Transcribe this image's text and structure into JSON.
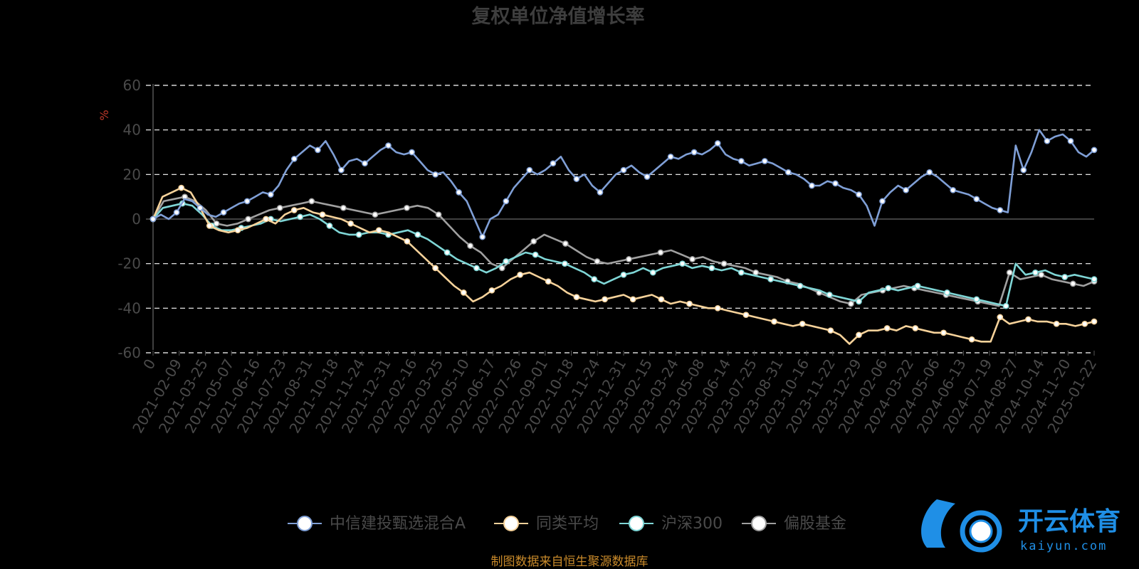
{
  "chart_data": {
    "type": "line",
    "title": "复权单位净值增长率",
    "ylabel": "%",
    "ylim": [
      -60,
      60
    ],
    "yticks": [
      "60",
      "40",
      "20",
      "0",
      "-20",
      "-40",
      "-60"
    ],
    "yticks_values": [
      60,
      40,
      20,
      0,
      -20,
      -40,
      -60
    ],
    "xticks": [
      "0",
      "2021-02-09",
      "2021-03-25",
      "2021-05-07",
      "2021-06-16",
      "2021-07-23",
      "2021-08-31",
      "2021-10-18",
      "2021-11-24",
      "2021-12-31",
      "2022-02-16",
      "2022-03-25",
      "2022-05-10",
      "2022-06-17",
      "2022-07-26",
      "2022-09-01",
      "2022-10-18",
      "2022-11-24",
      "2022-12-31",
      "2023-02-15",
      "2023-03-24",
      "2023-05-08",
      "2023-06-14",
      "2023-07-25",
      "2023-08-31",
      "2023-10-16",
      "2023-11-22",
      "2023-12-29",
      "2024-02-06",
      "2024-03-22",
      "2024-05-06",
      "2024-06-13",
      "2024-07-19",
      "2024-08-27",
      "2024-10-14",
      "2024-11-20",
      "2025-01-22"
    ],
    "grid": "dashed horizontal",
    "legend_position": "bottom",
    "series": [
      {
        "name": "中信建投甄选混合A",
        "color": "#7f9fd6",
        "values": [
          0,
          2,
          0,
          3,
          9,
          8,
          5,
          2,
          1,
          3,
          5,
          7,
          8,
          10,
          12,
          11,
          15,
          22,
          27,
          30,
          33,
          31,
          35,
          29,
          22,
          26,
          27,
          25,
          28,
          31,
          33,
          30,
          29,
          30,
          26,
          22,
          20,
          21,
          17,
          12,
          8,
          0,
          -8,
          0,
          2,
          8,
          14,
          18,
          22,
          20,
          22,
          25,
          28,
          22,
          18,
          20,
          15,
          12,
          16,
          20,
          22,
          24,
          21,
          19,
          22,
          25,
          28,
          27,
          29,
          30,
          29,
          31,
          34,
          29,
          27,
          26,
          24,
          25,
          26,
          25,
          23,
          21,
          20,
          18,
          15,
          15,
          17,
          16,
          14,
          13,
          11,
          6,
          -3,
          8,
          12,
          15,
          13,
          16,
          19,
          21,
          19,
          16,
          13,
          12,
          11,
          9,
          7,
          5,
          4,
          3,
          33,
          22,
          30,
          40,
          35,
          37,
          38,
          35,
          30,
          28,
          31
        ]
      },
      {
        "name": "同类平均",
        "color": "#f6d29a",
        "values": [
          0,
          10,
          12,
          14,
          12,
          5,
          -3,
          -5,
          -6,
          -5,
          -4,
          -2,
          0,
          -2,
          2,
          4,
          5,
          3,
          2,
          1,
          0,
          -2,
          -4,
          -6,
          -5,
          -6,
          -8,
          -10,
          -14,
          -18,
          -22,
          -26,
          -30,
          -33,
          -37,
          -35,
          -32,
          -30,
          -27,
          -25,
          -24,
          -26,
          -28,
          -30,
          -33,
          -35,
          -36,
          -37,
          -36,
          -35,
          -34,
          -36,
          -35,
          -34,
          -36,
          -38,
          -37,
          -38,
          -39,
          -40,
          -40,
          -41,
          -42,
          -43,
          -44,
          -45,
          -46,
          -47,
          -48,
          -47,
          -48,
          -49,
          -50,
          -52,
          -56,
          -52,
          -50,
          -50,
          -49,
          -50,
          -48,
          -49,
          -50,
          -51,
          -51,
          -52,
          -53,
          -54,
          -55,
          -55,
          -44,
          -47,
          -46,
          -45,
          -46,
          -46,
          -47,
          -47,
          -48,
          -47,
          -46
        ]
      },
      {
        "name": "沪深300",
        "color": "#7fd6d6",
        "values": [
          0,
          5,
          6,
          7,
          6,
          2,
          -3,
          -5,
          -5,
          -4,
          -3,
          -2,
          0,
          -1,
          0,
          1,
          2,
          0,
          -3,
          -6,
          -7,
          -7,
          -6,
          -6,
          -7,
          -6,
          -5,
          -7,
          -9,
          -12,
          -15,
          -18,
          -20,
          -22,
          -24,
          -22,
          -19,
          -17,
          -15,
          -16,
          -18,
          -19,
          -20,
          -22,
          -24,
          -27,
          -29,
          -27,
          -25,
          -24,
          -22,
          -24,
          -22,
          -21,
          -20,
          -22,
          -21,
          -22,
          -23,
          -22,
          -24,
          -25,
          -26,
          -27,
          -28,
          -29,
          -30,
          -31,
          -32,
          -34,
          -35,
          -36,
          -37,
          -33,
          -32,
          -31,
          -32,
          -31,
          -30,
          -31,
          -32,
          -33,
          -34,
          -35,
          -36,
          -37,
          -38,
          -39,
          -20,
          -25,
          -24,
          -23,
          -25,
          -26,
          -25,
          -26,
          -27
        ]
      },
      {
        "name": "偏股基金",
        "color": "#a0a0a0",
        "values": [
          0,
          8,
          9,
          10,
          8,
          4,
          -2,
          -3,
          -2,
          0,
          2,
          4,
          5,
          6,
          7,
          8,
          7,
          6,
          5,
          4,
          3,
          2,
          3,
          4,
          5,
          6,
          5,
          2,
          -3,
          -8,
          -12,
          -15,
          -20,
          -22,
          -18,
          -14,
          -10,
          -7,
          -9,
          -11,
          -14,
          -17,
          -19,
          -20,
          -19,
          -18,
          -17,
          -16,
          -15,
          -14,
          -16,
          -18,
          -17,
          -19,
          -20,
          -21,
          -22,
          -24,
          -25,
          -26,
          -28,
          -29,
          -31,
          -33,
          -35,
          -37,
          -38,
          -34,
          -33,
          -32,
          -31,
          -30,
          -31,
          -32,
          -33,
          -34,
          -35,
          -36,
          -37,
          -38,
          -39,
          -24,
          -27,
          -26,
          -25,
          -27,
          -28,
          -29,
          -30,
          -28
        ]
      }
    ]
  },
  "legend": {
    "items": [
      "中信建投甄选混合A",
      "同类平均",
      "沪深300",
      "偏股基金"
    ]
  },
  "source_note": "制图数据来自恒生聚源数据库",
  "watermark": {
    "main": "开云体育",
    "sub": "kaiyun.com"
  },
  "colors": {
    "background": "#000000",
    "grid": "#ffffff",
    "axis": "#555555"
  }
}
